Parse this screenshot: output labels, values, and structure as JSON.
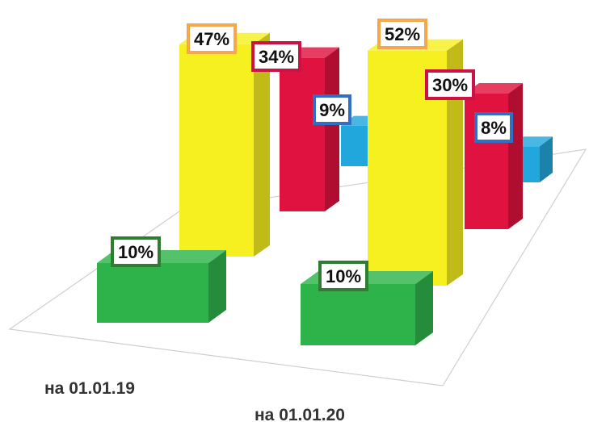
{
  "chart_data": {
    "type": "bar",
    "view": "3d-clustered",
    "grid": false,
    "legend": "none",
    "categories": [
      "на 01.01.19",
      "на 01.01.20"
    ],
    "series": [
      {
        "values": [
          10,
          10
        ],
        "color": "#2eb34a",
        "label_border": "#2e7d32"
      },
      {
        "values": [
          47,
          52
        ],
        "color": "#f7f021",
        "label_border": "#f5a84a"
      },
      {
        "values": [
          34,
          30
        ],
        "color": "#e0123f",
        "label_border": "#cc1245"
      },
      {
        "values": [
          9,
          8
        ],
        "color": "#22a7dd",
        "label_border": "#2f6fc4"
      }
    ],
    "data_labels": [
      [
        "10%",
        "47%",
        "34%",
        "9%"
      ],
      [
        "10%",
        "52%",
        "30%",
        "8%"
      ]
    ]
  }
}
